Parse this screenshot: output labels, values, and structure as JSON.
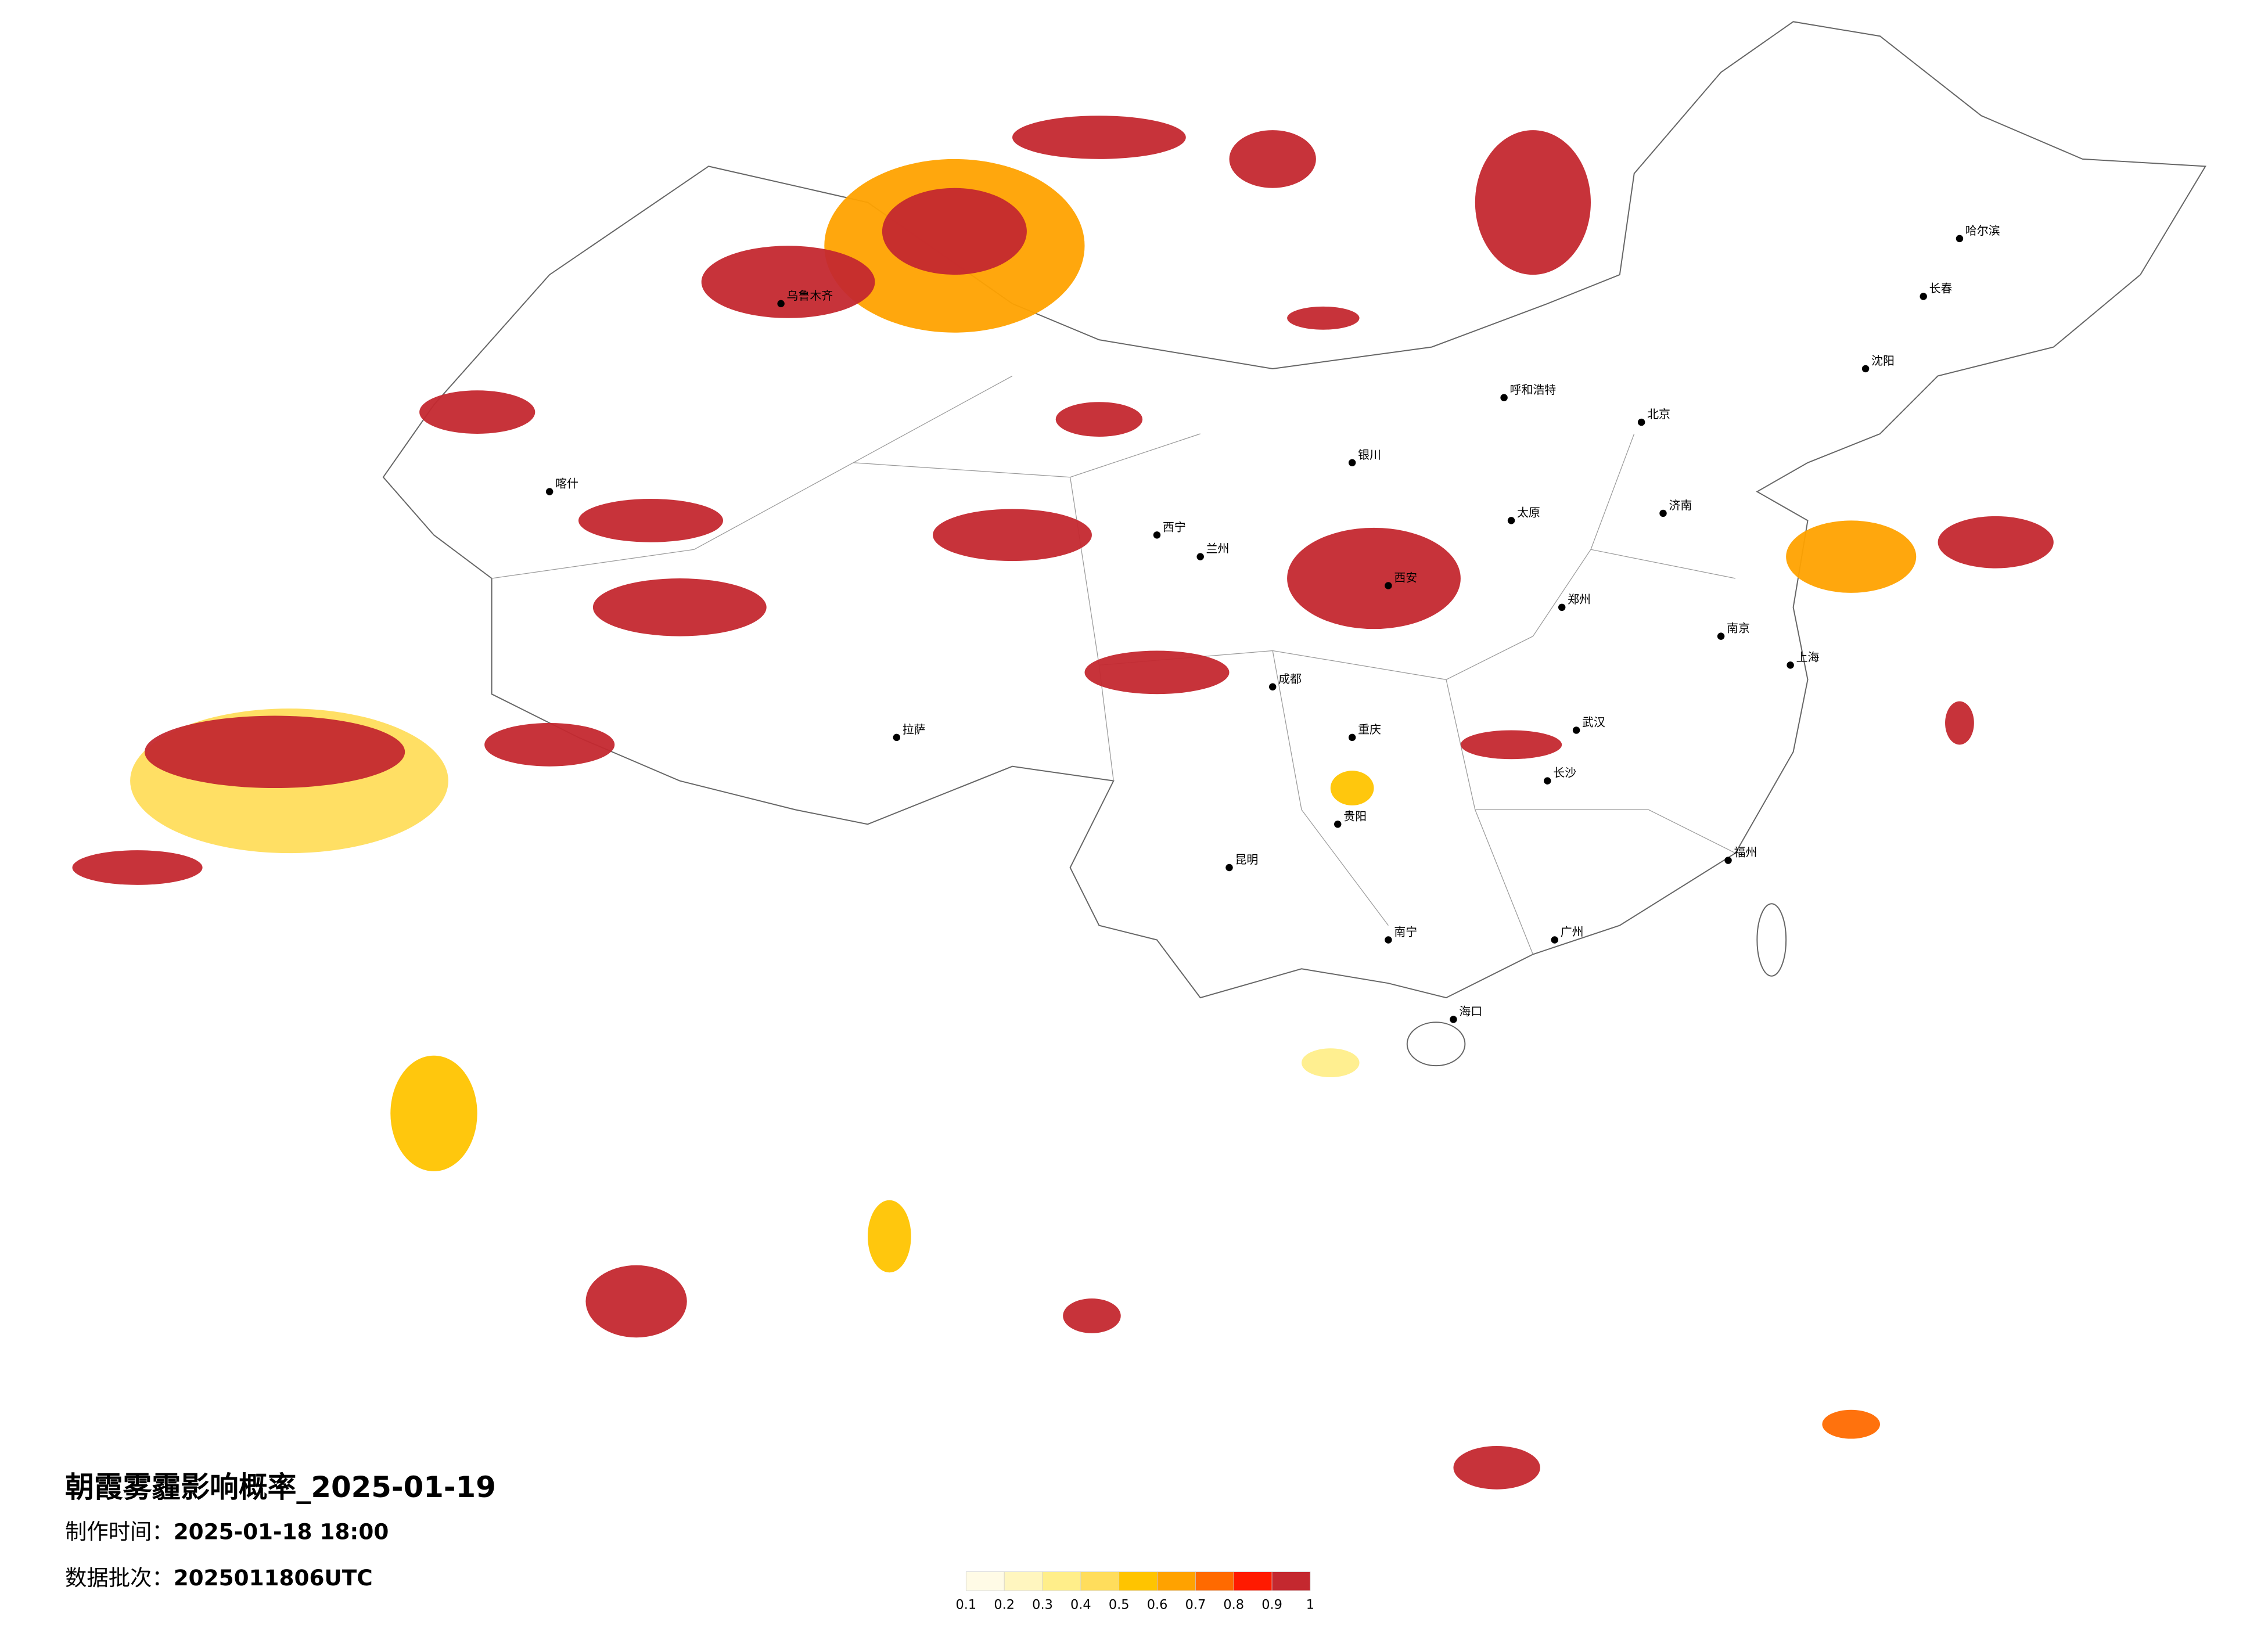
{
  "title": "朝霞雾霾影响概率_2025-01-19",
  "production_time": {
    "label": "制作时间：",
    "value": "2025-01-18 18:00"
  },
  "batch": {
    "label": "数据批次：",
    "value": "2025011806UTC"
  },
  "legend": {
    "colors": [
      "#fffbe6",
      "#fff6bf",
      "#ffee8a",
      "#ffdd5c",
      "#ffc400",
      "#ffa200",
      "#ff6a00",
      "#ff1a00",
      "#c4282f"
    ],
    "labels": [
      0.1,
      0.2,
      0.3,
      0.4,
      0.5,
      0.6,
      0.7,
      0.8,
      0.9,
      1
    ]
  },
  "cities": [
    "北京",
    "上海",
    "广州",
    "武汉",
    "成都",
    "重庆",
    "西安",
    "兰州",
    "乌鲁木齐",
    "拉萨",
    "哈尔滨",
    "长春",
    "沈阳",
    "郑州",
    "南京",
    "昆明",
    "贵阳",
    "南宁",
    "长沙",
    "福州",
    "海口",
    "呼和浩特",
    "银川",
    "西宁",
    "济南",
    "太原",
    "喀什"
  ]
}
